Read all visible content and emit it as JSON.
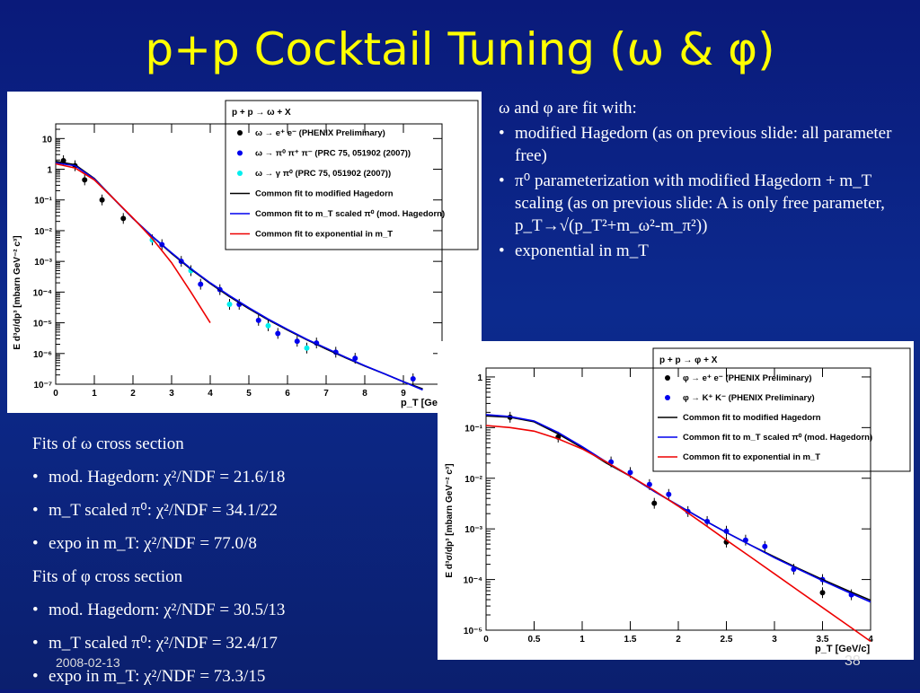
{
  "slide": {
    "title": "p+p Cocktail Tuning (ω & φ)",
    "date": "2008-02-13",
    "page_number": "38"
  },
  "omega_notes": {
    "intro": "ω and φ are fit with:",
    "b1": "modified Hagedorn (as on previous slide: all parameter free)",
    "b2": "π⁰ parameterization with modified Hagedorn + m_T scaling (as on previous slide: A is only free parameter, p_T→√(p_T²+m_ω²-m_π²))",
    "b3": "exponential in m_T"
  },
  "fit_results": {
    "omega_header": "Fits of ω cross section",
    "omega_lines": [
      "mod. Hagedorn: χ²/NDF = 21.6/18",
      "m_T scaled π⁰: χ²/NDF = 34.1/22",
      "expo in m_T: χ²/NDF = 77.0/8"
    ],
    "phi_header": "Fits of φ cross section",
    "phi_lines": [
      "mod. Hagedorn: χ²/NDF = 30.5/13",
      "m_T scaled π⁰: χ²/NDF = 32.4/17",
      "expo in m_T: χ²/NDF = 73.3/15"
    ]
  },
  "colors": {
    "title": "#ffff00",
    "black": "#000000",
    "blue": "#0000ee",
    "cyan": "#00eeee",
    "red": "#ee0000"
  },
  "chart_data": [
    {
      "type": "scatter",
      "xlabel": "p_T [GeV/c]",
      "ylabel": "E d³σ/dp³ [mbarn GeV⁻² c³]",
      "xlim": [
        0,
        10
      ],
      "ylim": [
        1e-07,
        30
      ],
      "log_y": true,
      "x_ticks": [
        "0",
        "1",
        "2",
        "3",
        "4",
        "5",
        "6",
        "7",
        "8",
        "9"
      ],
      "y_ticks": [
        "10",
        "1",
        "10⁻¹",
        "10⁻²",
        "10⁻³",
        "10⁻⁴",
        "10⁻⁵",
        "10⁻⁶",
        "10⁻⁷"
      ],
      "legend": {
        "header": "p + p → ω + X",
        "entries": [
          "ω → e⁺ e⁻ (PHENIX Preliminary)",
          "ω → π⁰ π⁺ π⁻ (PRC 75, 051902 (2007))",
          "ω → γ π⁰ (PRC 75, 051902 (2007))",
          "Common fit to modified Hagedorn",
          "Common fit to m_T scaled π⁰ (mod. Hagedorn)",
          "Common fit to exponential in m_T"
        ],
        "position": "top-right"
      },
      "series": [
        {
          "name": "ω → e⁺ e⁻ (PHENIX Preliminary)",
          "marker": "black",
          "x": [
            0.2,
            0.5,
            0.75,
            1.2,
            1.75
          ],
          "y": [
            1.9,
            1.3,
            0.45,
            0.1,
            0.025
          ]
        },
        {
          "name": "ω → π⁰ π⁺ π⁻ (PRC 75, 051902 (2007))",
          "marker": "blue",
          "x": [
            2.75,
            3.25,
            3.75,
            4.25,
            4.75,
            5.25,
            5.75,
            6.25,
            6.75,
            7.25,
            7.75,
            9.25
          ],
          "y": [
            0.0035,
            0.001,
            0.00018,
            0.00012,
            4e-05,
            1.2e-05,
            4.5e-06,
            2.5e-06,
            2.2e-06,
            1.1e-06,
            7e-07,
            1.5e-07
          ]
        },
        {
          "name": "ω → γ π⁰ (PRC 75, 051902 (2007))",
          "marker": "cyan",
          "x": [
            2.5,
            3.5,
            4.5,
            5.5,
            6.5
          ],
          "y": [
            0.005,
            0.0005,
            4e-05,
            8e-06,
            1.5e-06
          ]
        },
        {
          "name": "Common fit to modified Hagedorn",
          "color": "black",
          "line": true,
          "x": [
            0.0,
            0.5,
            1.0,
            1.5,
            2.0,
            2.5,
            3.0,
            3.5,
            4.0,
            4.5,
            5.0,
            5.5,
            6.0,
            6.5,
            7.0,
            7.5,
            8.0,
            8.5,
            9.0,
            9.5
          ],
          "y": [
            1.8,
            1.4,
            0.5,
            0.11,
            0.025,
            0.0065,
            0.0018,
            0.00055,
            0.00019,
            7.1e-05,
            2.9e-05,
            1.25e-05,
            5.8e-06,
            2.8e-06,
            1.4e-06,
            7.3e-07,
            3.9e-07,
            2.2e-07,
            1.2e-07,
            7e-08
          ]
        },
        {
          "name": "Common fit to m_T scaled π⁰ (mod. Hagedorn)",
          "color": "blue",
          "line": true,
          "x": [
            0.0,
            0.5,
            1.0,
            1.5,
            2.0,
            2.5,
            3.0,
            3.5,
            4.0,
            4.5,
            5.0,
            5.5,
            6.0,
            6.5,
            7.0,
            7.5,
            8.0,
            8.5,
            9.0,
            9.5
          ],
          "y": [
            1.6,
            1.3,
            0.48,
            0.11,
            0.025,
            0.0065,
            0.0019,
            0.00058,
            0.0002,
            7.6e-05,
            3.1e-05,
            1.32e-05,
            6.1e-06,
            2.9e-06,
            1.5e-06,
            7.6e-07,
            4e-07,
            2.2e-07,
            1.2e-07,
            6.5e-08
          ]
        },
        {
          "name": "Common fit to exponential in m_T",
          "color": "red",
          "line": true,
          "x": [
            0.0,
            0.5,
            1.0,
            1.5,
            2.0,
            2.5,
            3.0,
            3.5,
            4.0
          ],
          "y": [
            1.5,
            1.1,
            0.45,
            0.11,
            0.026,
            0.0055,
            0.0009,
            0.0001,
            1e-05
          ]
        }
      ]
    },
    {
      "type": "scatter",
      "xlabel": "p_T [GeV/c]",
      "ylabel": "E d³σ/dp³ [mbarn GeV⁻² c³]",
      "xlim": [
        0,
        4
      ],
      "ylim": [
        1e-05,
        1.5
      ],
      "log_y": true,
      "x_ticks": [
        "0",
        "0.5",
        "1",
        "1.5",
        "2",
        "2.5",
        "3",
        "3.5",
        "4"
      ],
      "y_ticks": [
        "1",
        "10⁻¹",
        "10⁻²",
        "10⁻³",
        "10⁻⁴",
        "10⁻⁵"
      ],
      "legend": {
        "header": "p + p → φ + X",
        "entries": [
          "φ → e⁺ e⁻ (PHENIX Preliminary)",
          "φ → K⁺ K⁻ (PHENIX Preliminary)",
          "Common fit to modified Hagedorn",
          "Common fit to m_T scaled π⁰ (mod. Hagedorn)",
          "Common fit to exponential in m_T"
        ],
        "position": "top-right"
      },
      "series": [
        {
          "name": "φ → e⁺ e⁻ (PHENIX Preliminary)",
          "marker": "black",
          "x": [
            0.25,
            0.75,
            1.75,
            2.5,
            3.5
          ],
          "y": [
            0.16,
            0.065,
            0.0032,
            0.00055,
            5.5e-05
          ]
        },
        {
          "name": "φ → K⁺ K⁻ (PHENIX Preliminary)",
          "marker": "blue",
          "x": [
            1.3,
            1.5,
            1.7,
            1.9,
            2.1,
            2.3,
            2.5,
            2.7,
            2.9,
            3.2,
            3.5,
            3.8
          ],
          "y": [
            0.021,
            0.013,
            0.0075,
            0.0048,
            0.0022,
            0.0014,
            0.0009,
            0.0006,
            0.00045,
            0.00016,
            0.0001,
            5e-05
          ]
        },
        {
          "name": "Common fit to modified Hagedorn",
          "color": "black",
          "line": true,
          "x": [
            0.0,
            0.25,
            0.5,
            0.75,
            1.0,
            1.25,
            1.5,
            1.75,
            2.0,
            2.25,
            2.5,
            2.75,
            3.0,
            3.25,
            3.5,
            3.75,
            4.0
          ],
          "y": [
            0.17,
            0.16,
            0.13,
            0.075,
            0.04,
            0.02,
            0.011,
            0.0055,
            0.0029,
            0.00155,
            0.00085,
            0.00048,
            0.00028,
            0.000165,
            0.0001,
            6.2e-05,
            3.9e-05
          ]
        },
        {
          "name": "Common fit to m_T scaled π⁰ (mod. Hagedorn)",
          "color": "blue",
          "line": true,
          "x": [
            0.0,
            0.25,
            0.5,
            0.75,
            1.0,
            1.25,
            1.5,
            1.75,
            2.0,
            2.25,
            2.5,
            2.75,
            3.0,
            3.25,
            3.5,
            3.75,
            4.0
          ],
          "y": [
            0.18,
            0.165,
            0.135,
            0.08,
            0.042,
            0.021,
            0.011,
            0.0055,
            0.0029,
            0.00155,
            0.00085,
            0.00048,
            0.00027,
            0.00016,
            9.5e-05,
            5.8e-05,
            3.6e-05
          ]
        },
        {
          "name": "Common fit to exponential in m_T",
          "color": "red",
          "line": true,
          "x": [
            0.0,
            0.25,
            0.5,
            0.75,
            1.0,
            1.25,
            1.5,
            1.75,
            2.0,
            2.25,
            2.5,
            2.75,
            3.0,
            3.25,
            3.5,
            3.75,
            4.0
          ],
          "y": [
            0.11,
            0.1,
            0.085,
            0.06,
            0.038,
            0.021,
            0.011,
            0.0057,
            0.0028,
            0.0013,
            0.0006,
            0.00028,
            0.00013,
            6e-05,
            2.8e-05,
            1.3e-05,
            6e-06
          ]
        }
      ]
    }
  ]
}
